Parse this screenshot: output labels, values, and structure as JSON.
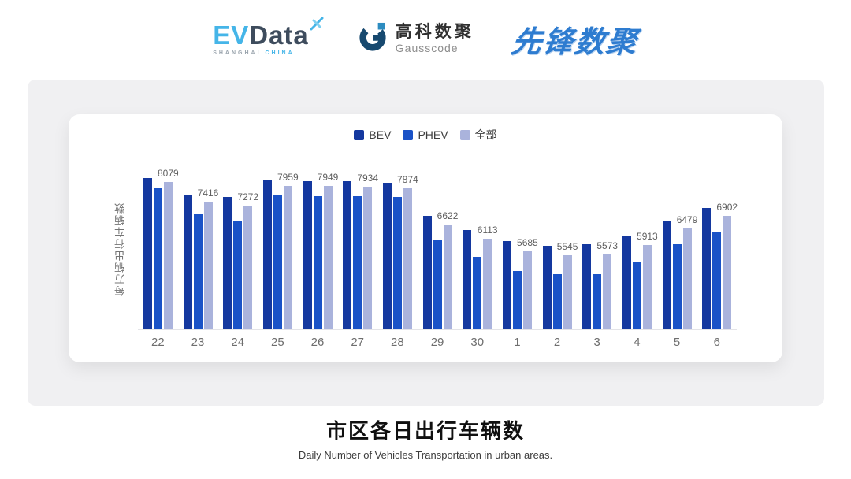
{
  "header": {
    "evdata": {
      "ev": "EV",
      "data": "Data",
      "sub_left": "SHANGHAI",
      "sub_right": "CHINA"
    },
    "gausscode": {
      "cn": "高科数聚",
      "en": "Gausscode"
    },
    "pioneer": {
      "text": "先锋数聚"
    }
  },
  "chart_data": {
    "type": "bar",
    "title": "市区各日出行车辆数",
    "subtitle": "Daily Number of Vehicles Transportation in urban areas.",
    "ylabel": "每万辆出行车辆数",
    "xlabel": "",
    "categories": [
      "22",
      "23",
      "24",
      "25",
      "26",
      "27",
      "28",
      "29",
      "30",
      "1",
      "2",
      "3",
      "4",
      "5",
      "6"
    ],
    "series": [
      {
        "name": "BEV",
        "color": "#14389f",
        "values": [
          8230,
          7660,
          7570,
          8160,
          8130,
          8130,
          8070,
          6910,
          6430,
          6030,
          5880,
          5920,
          6230,
          6760,
          7200
        ]
      },
      {
        "name": "PHEV",
        "color": "#1a52c7",
        "values": [
          7860,
          6990,
          6760,
          7630,
          7610,
          7590,
          7570,
          6060,
          5490,
          5010,
          4900,
          4900,
          5330,
          5920,
          6330
        ]
      },
      {
        "name": "全部",
        "color": "#aab3dc",
        "values": [
          8079,
          7416,
          7272,
          7959,
          7949,
          7934,
          7874,
          6622,
          6113,
          5685,
          5545,
          5573,
          5913,
          6479,
          6902
        ]
      }
    ],
    "value_labels": [
      8079,
      7416,
      7272,
      7959,
      7949,
      7934,
      7874,
      6622,
      6113,
      5685,
      5545,
      5573,
      5913,
      6479,
      6902
    ],
    "value_labels_series": "全部",
    "ylim": [
      3000,
      8500
    ],
    "grid": false,
    "legend_position": "top"
  },
  "footer": {
    "title": "市区各日出行车辆数",
    "subtitle": "Daily Number of Vehicles Transportation in urban areas."
  }
}
